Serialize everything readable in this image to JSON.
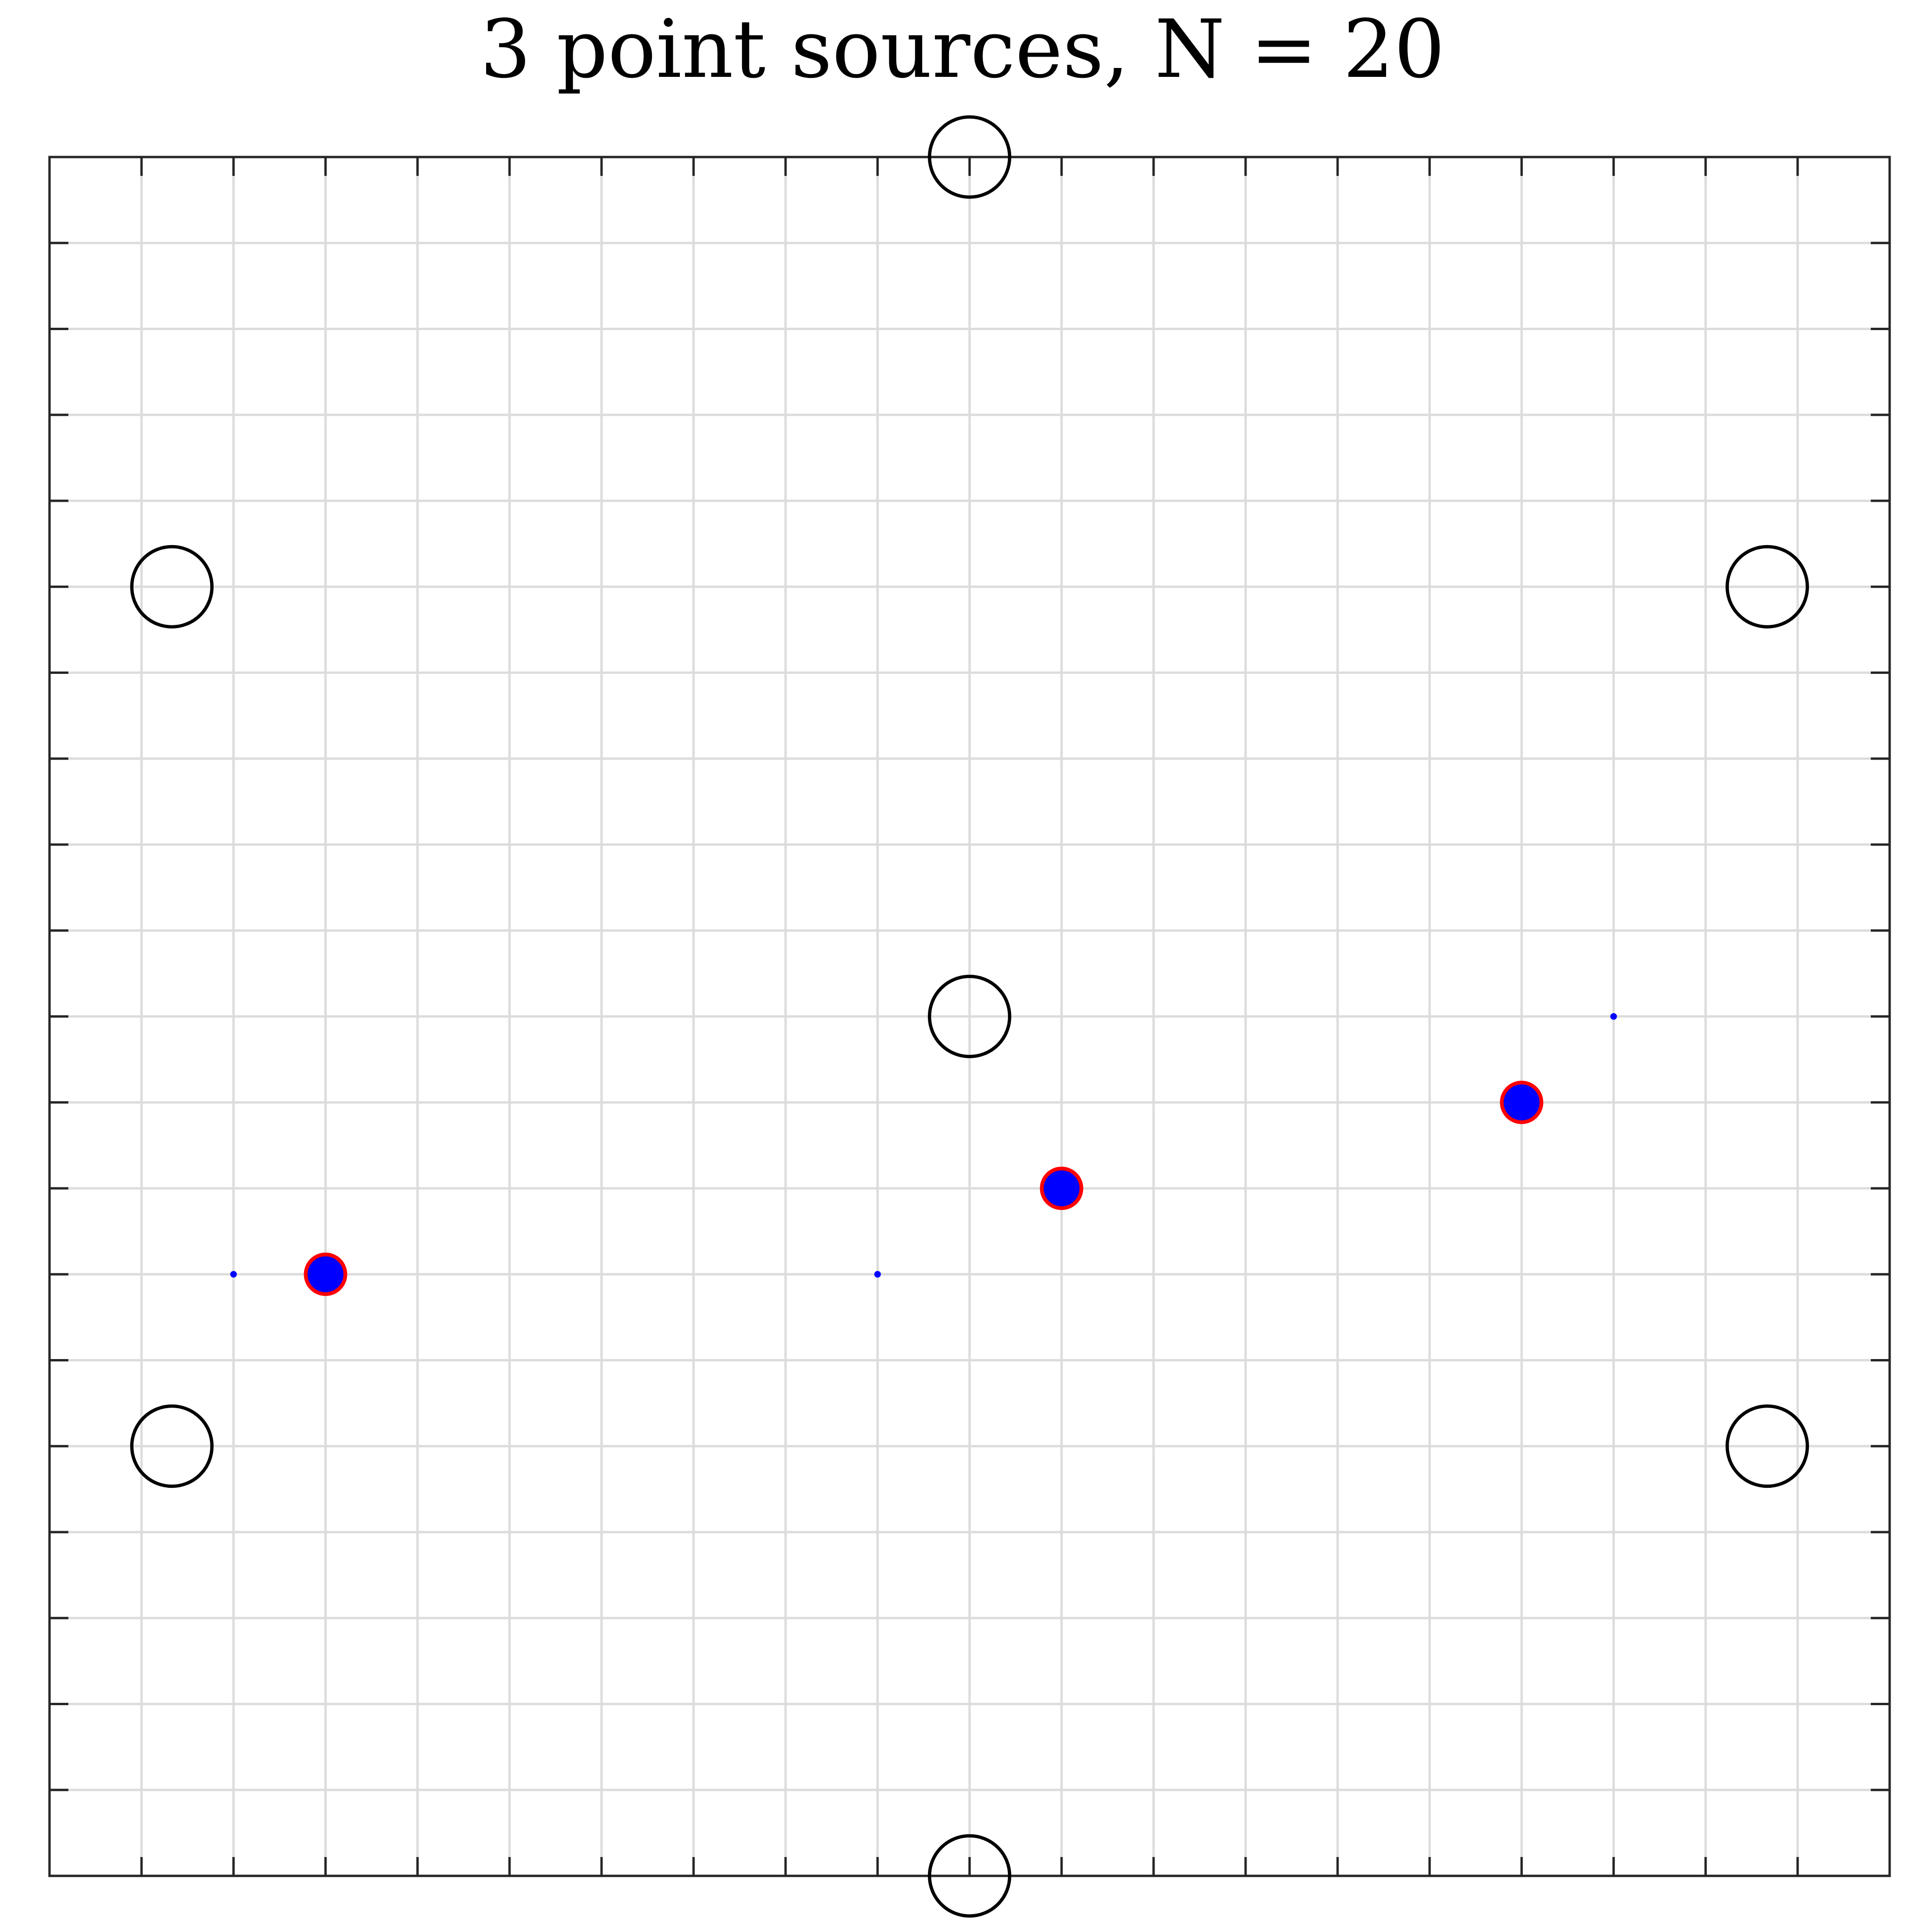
{
  "chart_data": {
    "type": "scatter",
    "title": "3 point sources, N = 20",
    "xlabel": "",
    "ylabel": "",
    "xlim": [
      0,
      20
    ],
    "ylim": [
      0,
      20
    ],
    "grid": true,
    "tick_labels_shown": false,
    "series": [
      {
        "marker": "open-circle",
        "color": "#000000",
        "points": [
          [
            10,
            20
          ],
          [
            1.33,
            15
          ],
          [
            18.67,
            15
          ],
          [
            10,
            10
          ],
          [
            1.33,
            5
          ],
          [
            18.67,
            5
          ],
          [
            10,
            0
          ]
        ]
      },
      {
        "marker": "red-edged-filled-circle",
        "color": "#0000ff",
        "edge_color": "#ff0000",
        "points": [
          [
            3,
            7
          ],
          [
            11,
            8
          ],
          [
            16,
            9
          ]
        ]
      },
      {
        "marker": "small-dot",
        "color": "#0000ff",
        "points": [
          [
            2,
            7
          ],
          [
            9,
            7
          ],
          [
            17,
            10
          ]
        ]
      }
    ]
  }
}
